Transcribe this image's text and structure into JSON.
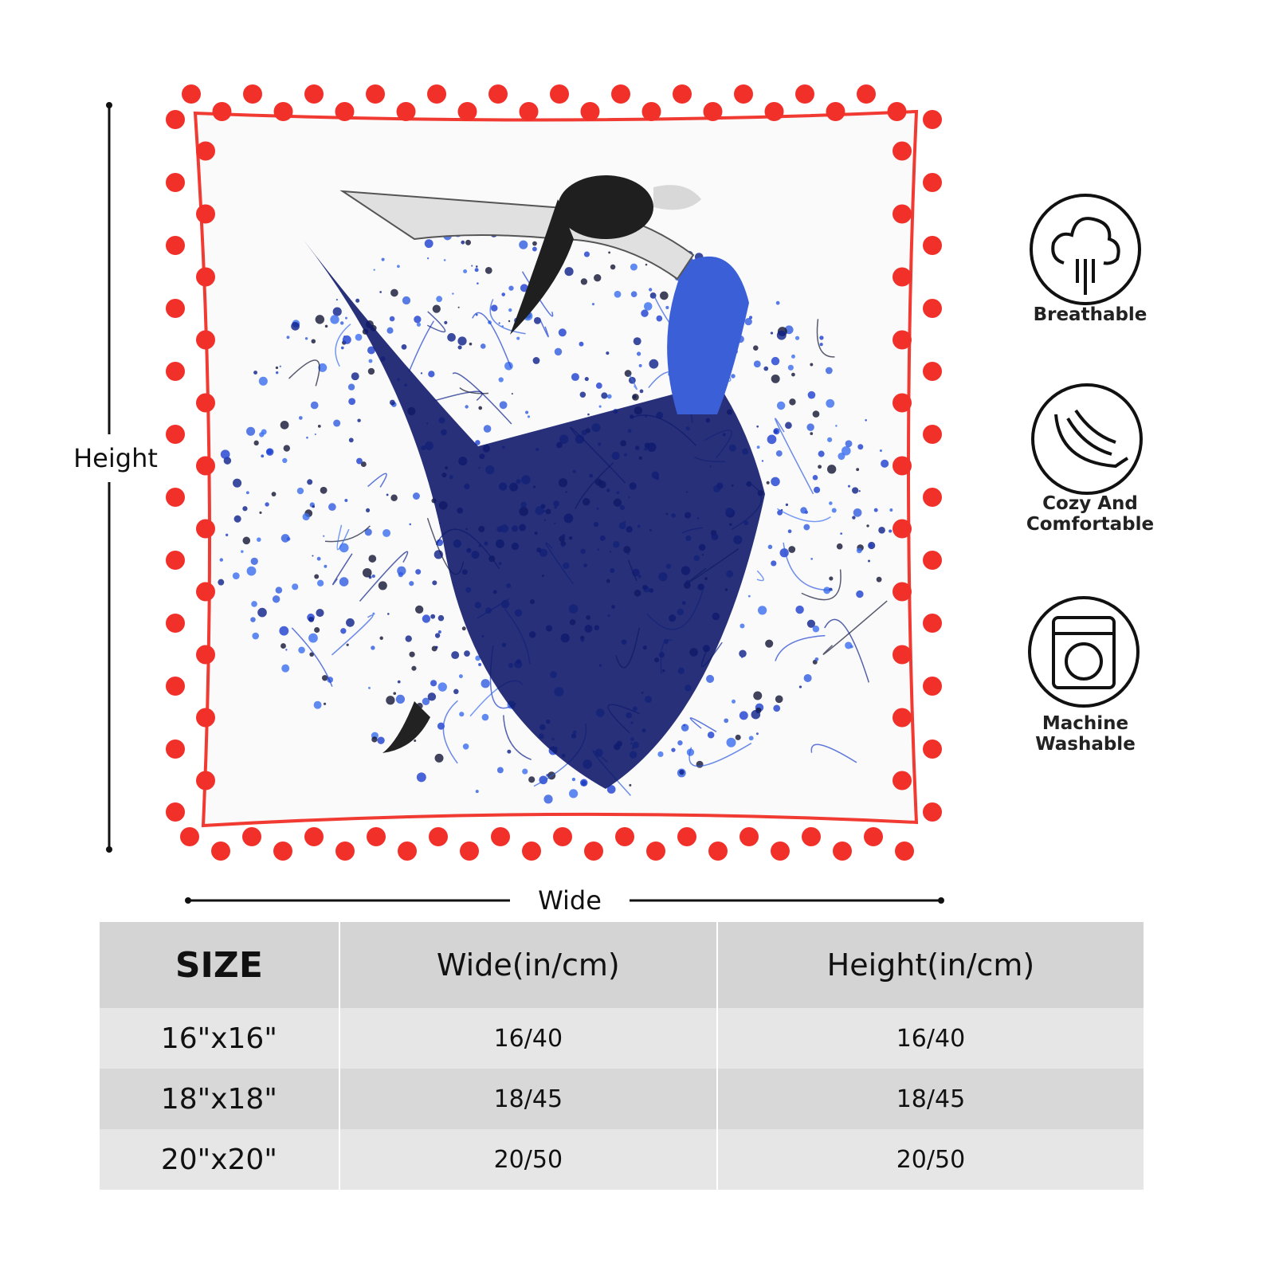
{
  "dimensions": {
    "height_label": "Height",
    "width_label": "Wide"
  },
  "features": [
    {
      "lines": [
        "Breathable"
      ]
    },
    {
      "lines": [
        "Cozy And",
        "Comfortable"
      ]
    },
    {
      "lines": [
        "Machine",
        "Washable"
      ]
    }
  ],
  "table": {
    "header": [
      "SIZE",
      "Wide(in/cm)",
      "Height(in/cm)"
    ],
    "rows": [
      [
        "16\"x16\"",
        "16/40",
        "16/40"
      ],
      [
        "18\"x18\"",
        "18/45",
        "18/45"
      ],
      [
        "20\"x20\"",
        "20/50",
        "20/50"
      ]
    ]
  }
}
